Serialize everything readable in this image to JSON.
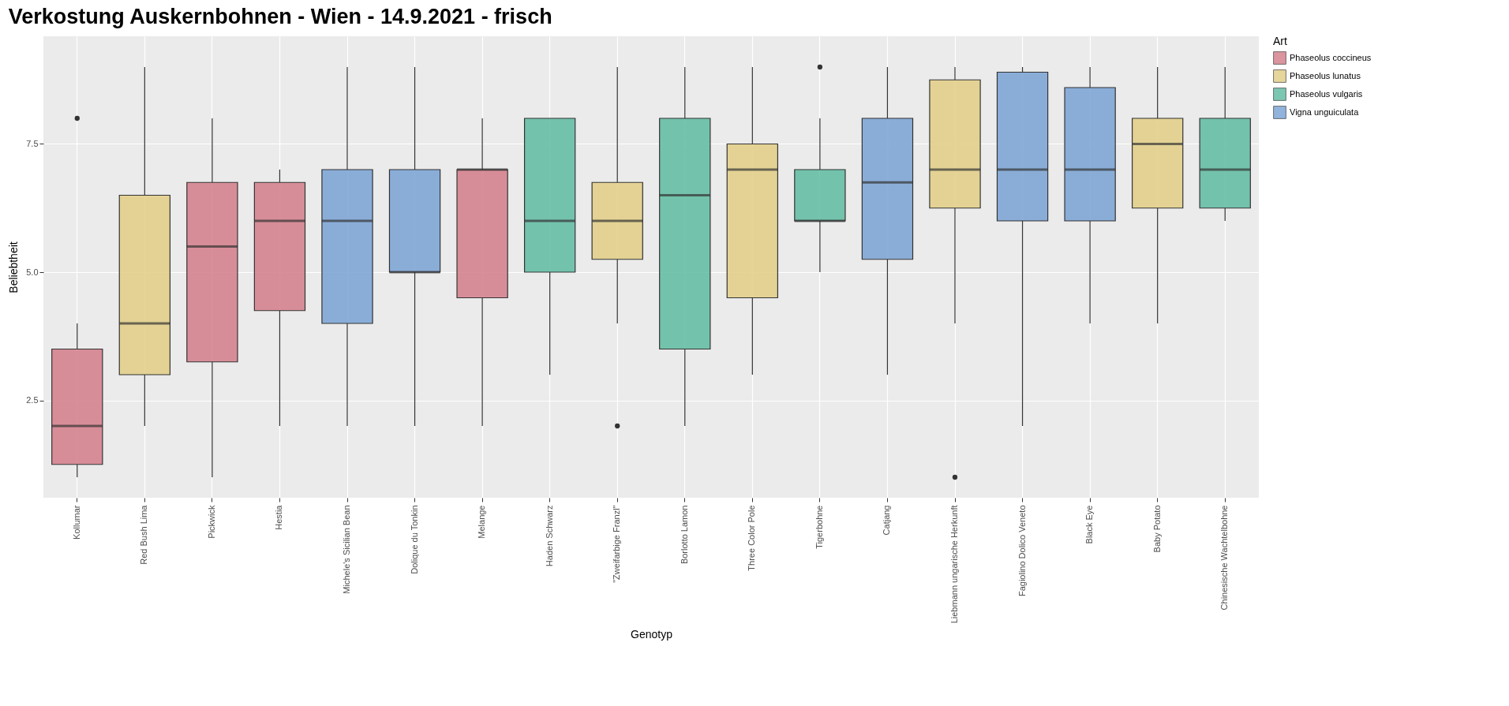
{
  "chart_data": {
    "type": "box",
    "title": "Verkostung Auskernbohnen - Wien - 14.9.2021 - frisch",
    "xlabel": "Genotyp",
    "ylabel": "Beliebtheit",
    "legend_title": "Art",
    "legend": "right",
    "grid": true,
    "categories": [
      "Kollumar",
      "Red Bush Lima",
      "Pickwick",
      "Hestia",
      "Michele's Sicilian Bean",
      "Dolique du Tonkin",
      "Melange",
      "Haden Schwarz",
      "\"Zweifarbige Franzl\"",
      "Borlotto Lamon",
      "Three Color Pole",
      "Tigerbohne",
      "Catjang",
      "Liebmann ungarische Herkunft",
      "Fagiolino Dolico Veneto",
      "Black Eye",
      "Baby Potato",
      "Chinesische Wachtelbohne"
    ],
    "ylim": [
      0.6,
      9.6
    ],
    "yticks": [
      2.5,
      {
        "value": 5,
        "label": "5.0"
      },
      7.5
    ],
    "series": [
      {
        "name": "Phaseolus coccineus",
        "color": "#d5838f",
        "boxes": [
          {
            "low": 1,
            "q1": 1.25,
            "median": 2,
            "q3": 3.5,
            "high": 4,
            "outliers": [
              8
            ]
          },
          null,
          {
            "low": 1,
            "q1": 3.25,
            "median": 5.5,
            "q3": 6.75,
            "high": 8
          },
          {
            "low": 2,
            "q1": 4.25,
            "median": 6,
            "q3": 6.75,
            "high": 7
          },
          null,
          null,
          {
            "low": 2,
            "q1": 4.5,
            "median": 7,
            "q3": 7,
            "high": 8
          },
          null,
          null,
          null,
          null,
          null,
          null,
          null,
          null,
          null,
          null,
          null
        ]
      },
      {
        "name": "Phaseolus lunatus",
        "color": "#e2cf8b",
        "boxes": [
          null,
          {
            "low": 2,
            "q1": 3,
            "median": 4,
            "q3": 6.5,
            "high": 9
          },
          null,
          null,
          null,
          null,
          null,
          null,
          {
            "low": 4,
            "q1": 5.25,
            "median": 6,
            "q3": 6.75,
            "high": 9,
            "outliers": [
              2
            ]
          },
          null,
          {
            "low": 3,
            "q1": 4.5,
            "median": 7,
            "q3": 7.5,
            "high": 9
          },
          null,
          null,
          {
            "low": 4,
            "q1": 6.25,
            "median": 7,
            "q3": 8.75,
            "high": 9,
            "outliers": [
              1
            ]
          },
          null,
          null,
          {
            "low": 4,
            "q1": 6.25,
            "median": 7.5,
            "q3": 8,
            "high": 9
          },
          null
        ]
      },
      {
        "name": "Phaseolus vulgaris",
        "color": "#66bea5",
        "boxes": [
          null,
          null,
          null,
          null,
          null,
          null,
          null,
          {
            "low": 3,
            "q1": 5,
            "median": 6,
            "q3": 8,
            "high": 8
          },
          null,
          {
            "low": 2,
            "q1": 3.5,
            "median": 6.5,
            "q3": 8,
            "high": 9
          },
          null,
          {
            "low": 5,
            "q1": 6,
            "median": 6,
            "q3": 7,
            "high": 8,
            "outliers": [
              9
            ]
          },
          null,
          null,
          null,
          null,
          null,
          {
            "low": 6,
            "q1": 6.25,
            "median": 7,
            "q3": 8,
            "high": 9
          }
        ]
      },
      {
        "name": "Vigna unguiculata",
        "color": "#80a6d6",
        "boxes": [
          null,
          null,
          null,
          null,
          {
            "low": 2,
            "q1": 4,
            "median": 6,
            "q3": 7,
            "high": 9
          },
          {
            "low": 2,
            "q1": 5,
            "median": 5,
            "q3": 7,
            "high": 9
          },
          null,
          null,
          null,
          null,
          null,
          null,
          {
            "low": 3,
            "q1": 5.25,
            "median": 6.75,
            "q3": 8,
            "high": 9
          },
          null,
          {
            "low": 2,
            "q1": 6,
            "median": 7,
            "q3": 8.9,
            "high": 9
          },
          {
            "low": 4,
            "q1": 6,
            "median": 7,
            "q3": 8.6,
            "high": 9
          },
          null,
          null
        ]
      }
    ]
  }
}
